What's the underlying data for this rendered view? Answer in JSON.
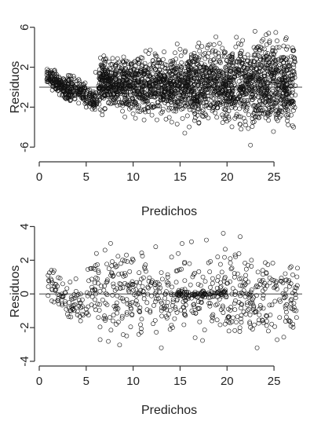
{
  "chart_data": [
    {
      "type": "scatter",
      "xlabel": "Predichos",
      "ylabel": "Residuos",
      "xlim": [
        0,
        28
      ],
      "ylim": [
        -7,
        7
      ],
      "xticks": [
        "0",
        "5",
        "10",
        "15",
        "20",
        "25"
      ],
      "yticks": [
        "6",
        "2",
        "-2",
        "-6"
      ],
      "reference_line_y": 0,
      "marker": "open-circle",
      "grid": false,
      "series": [
        {
          "x": [
            0.9,
            1.2,
            1.5,
            1.8,
            2.2,
            2.6,
            3.0,
            3.4,
            3.8,
            4.2,
            4.6,
            5.0,
            5.4,
            6.0,
            6.5,
            7.0,
            7.5,
            8.0,
            8.5,
            9.0,
            9.5,
            10.0,
            10.5,
            11.0,
            11.5,
            12.0,
            12.5,
            13.0,
            13.5,
            14.0,
            14.5,
            15.0,
            15.5,
            16.0,
            16.5,
            17.0,
            17.5,
            18.0,
            18.5,
            19.0,
            19.5,
            20.0,
            20.5,
            21.0,
            21.5,
            22.0,
            22.5,
            23.0,
            23.5,
            24.0,
            24.5,
            25.0,
            25.5,
            26.0,
            26.5,
            27.0
          ],
          "y": [
            1.0,
            1.4,
            0.6,
            -0.2,
            0.9,
            0.2,
            -1.0,
            0.5,
            -0.8,
            -1.6,
            0.0,
            -2.0,
            -0.6,
            1.5,
            0.8,
            2.8,
            1.9,
            -1.0,
            2.5,
            0.7,
            -1.5,
            1.8,
            -2.4,
            2.2,
            0.4,
            -2.8,
            3.1,
            1.2,
            -3.2,
            2.6,
            -0.4,
            3.8,
            -4.6,
            1.0,
            3.4,
            -3.6,
            2.0,
            4.2,
            -2.2,
            0.6,
            3.9,
            -3.4,
            2.8,
            5.0,
            -4.2,
            1.4,
            -5.8,
            3.2,
            -2.6,
            0.8,
            2.4,
            -1.8,
            1.6,
            -0.6,
            0.9,
            -1.4
          ]
        }
      ]
    },
    {
      "type": "scatter",
      "xlabel": "Predichos",
      "ylabel": "Residuos",
      "xlim": [
        0,
        28
      ],
      "ylim": [
        -4,
        4.3
      ],
      "xticks": [
        "0",
        "5",
        "10",
        "15",
        "20",
        "25"
      ],
      "yticks": [
        "4",
        "2",
        "0",
        "-2",
        "-4"
      ],
      "reference_line_y": 0,
      "marker": "open-circle",
      "grid": false,
      "series": [
        {
          "x": [
            1.0,
            1.3,
            1.7,
            2.1,
            2.5,
            3.0,
            3.4,
            3.9,
            4.4,
            5.0,
            5.6,
            6.3,
            7.0,
            7.6,
            8.2,
            8.8,
            9.4,
            10.0,
            10.6,
            11.2,
            11.8,
            12.4,
            13.0,
            13.6,
            14.2,
            14.8,
            15.4,
            16.0,
            16.6,
            17.2,
            17.8,
            18.4,
            19.0,
            19.6,
            20.2,
            20.8,
            21.4,
            22.0,
            22.6,
            23.2,
            23.8,
            24.4,
            25.0,
            25.6,
            26.2,
            26.8,
            27.4
          ],
          "y": [
            0.8,
            1.4,
            0.2,
            -0.6,
            0.6,
            -1.2,
            -0.2,
            0.9,
            -1.6,
            -0.9,
            0.4,
            -1.4,
            2.6,
            3.0,
            -1.8,
            1.2,
            -0.6,
            2.0,
            -2.4,
            1.6,
            -1.0,
            2.8,
            -3.2,
            0.7,
            -2.0,
            2.4,
            -0.8,
            1.8,
            -2.6,
            0.5,
            3.2,
            -1.6,
            2.2,
            3.6,
            -2.2,
            1.0,
            3.4,
            -1.2,
            2.0,
            -3.2,
            1.4,
            -2.2,
            0.8,
            -1.4,
            1.2,
            -1.9,
            -1.4
          ]
        }
      ]
    }
  ]
}
